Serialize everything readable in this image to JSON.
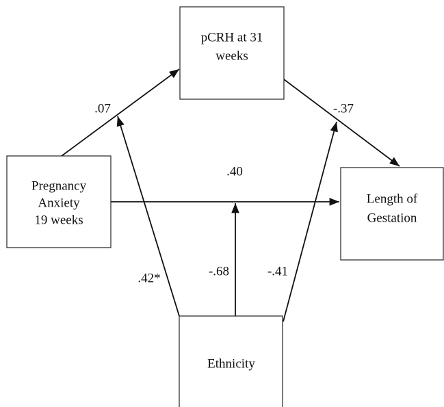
{
  "nodes": [
    {
      "lines": [
        "pCRH at 31",
        "weeks"
      ]
    },
    {
      "lines": [
        "Pregnancy",
        "Anxiety",
        "19 weeks"
      ]
    },
    {
      "lines": [
        "Length of",
        "Gestation"
      ]
    },
    {
      "lines": [
        "Ethnicity"
      ]
    }
  ],
  "edges": [
    {
      "label": ".07"
    },
    {
      "label": "-.37"
    },
    {
      "label": ".40"
    },
    {
      "label": ".42*"
    },
    {
      "label": "-.68"
    },
    {
      "label": "-.41"
    }
  ]
}
